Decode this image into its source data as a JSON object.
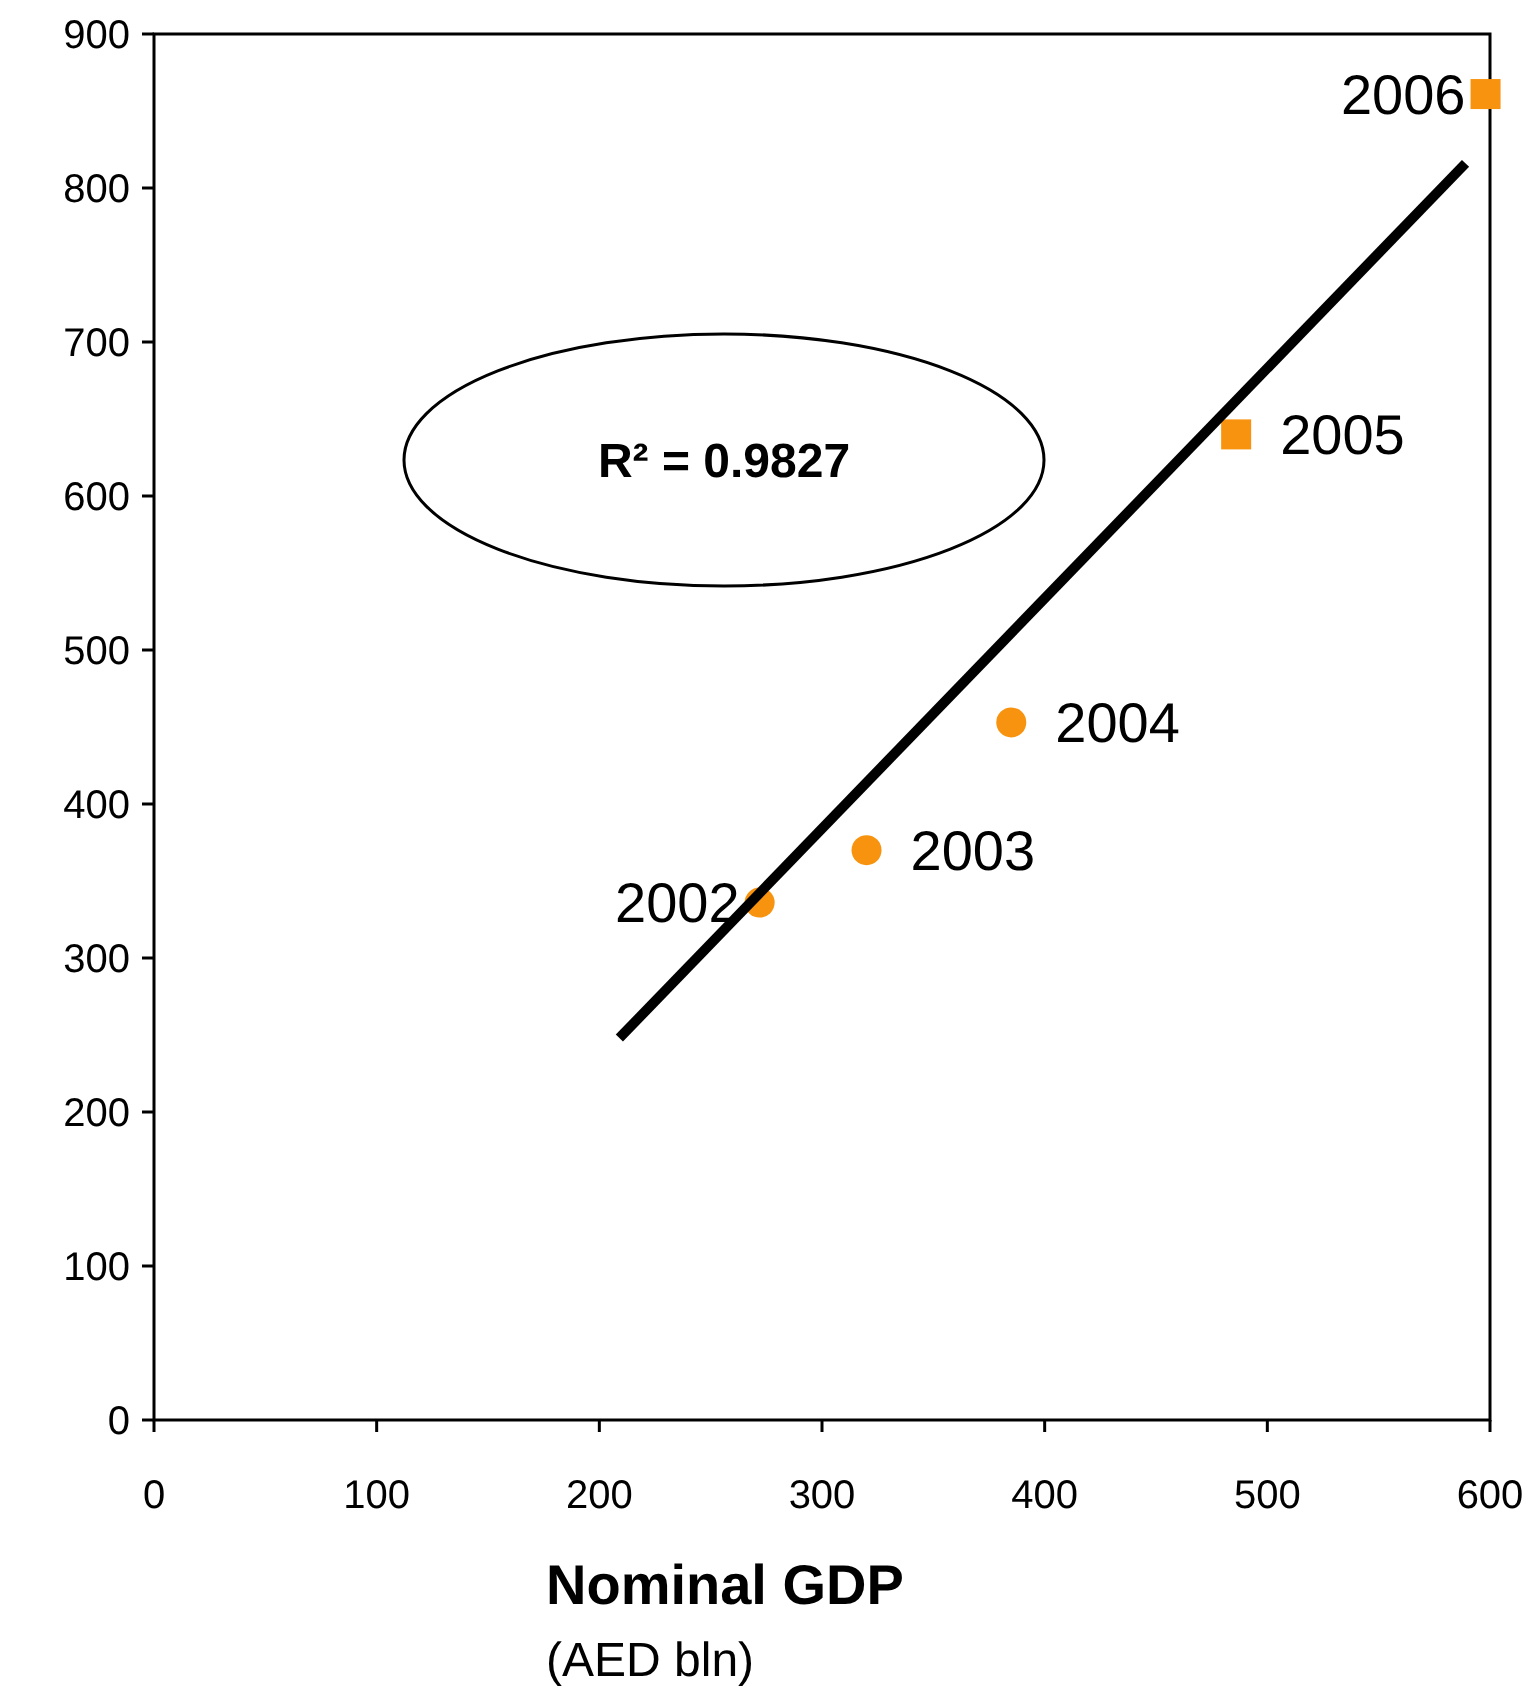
{
  "chart_data": {
    "type": "scatter",
    "xlabel": "Nominal GDP\n(AED bln)",
    "xlim": [
      0,
      600
    ],
    "xticks": [
      0,
      100,
      200,
      300,
      400,
      500,
      600
    ],
    "ylim": [
      0,
      900
    ],
    "yticks": [
      0,
      100,
      200,
      300,
      400,
      500,
      600,
      700,
      800,
      900
    ],
    "grid": false,
    "series": [
      {
        "marker": "circle",
        "color": "#f7930e",
        "x": [
          272,
          320,
          385
        ],
        "values": [
          336,
          370,
          453
        ]
      },
      {
        "marker": "square",
        "color": "#f7930e",
        "x": [
          486,
          598
        ],
        "values": [
          640,
          861
        ]
      },
      {
        "type": "line",
        "line_style": "solid",
        "color": "#000000",
        "x": [
          209,
          589
        ],
        "values": [
          248,
          816
        ]
      }
    ],
    "annotations": [
      "R² = 0.9827",
      {
        "text": "2002",
        "x": 272,
        "y": 336
      },
      {
        "text": "2003",
        "x": 320,
        "y": 370
      },
      {
        "text": "2004",
        "x": 385,
        "y": 453
      },
      {
        "text": "2005",
        "x": 486,
        "y": 640
      },
      {
        "text": "2006",
        "x": 598,
        "y": 861
      }
    ]
  }
}
